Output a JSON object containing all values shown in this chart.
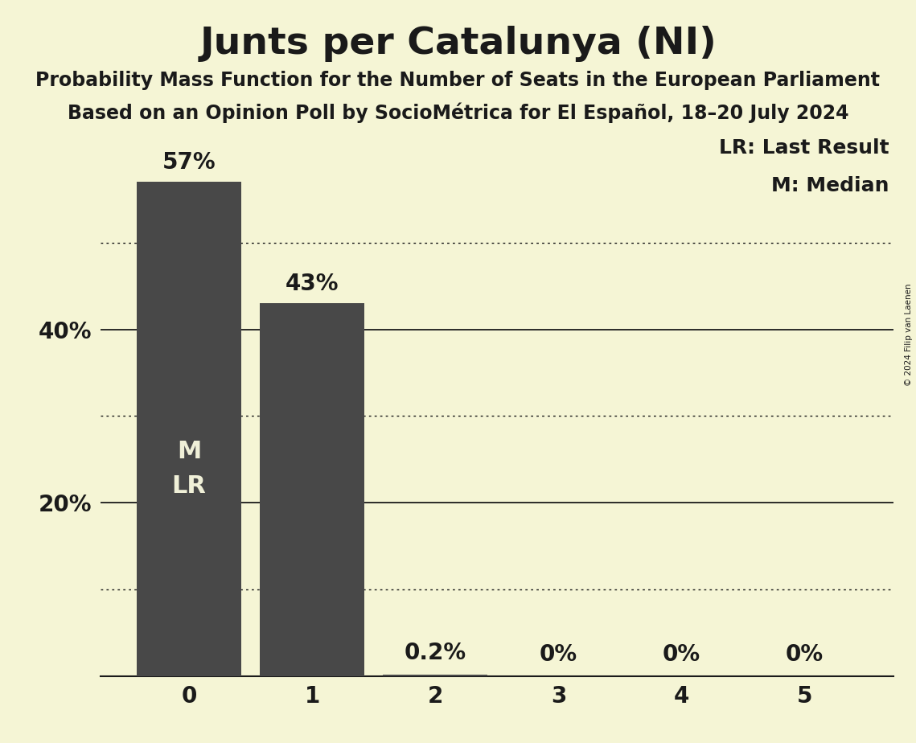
{
  "title": "Junts per Catalunya (NI)",
  "subtitle1": "Probability Mass Function for the Number of Seats in the European Parliament",
  "subtitle2": "Based on an Opinion Poll by SocioMétrica for El Español, 18–20 July 2024",
  "categories": [
    0,
    1,
    2,
    3,
    4,
    5
  ],
  "values": [
    0.57,
    0.43,
    0.002,
    0.0,
    0.0,
    0.0
  ],
  "bar_labels": [
    "57%",
    "43%",
    "0.2%",
    "0%",
    "0%",
    "0%"
  ],
  "bar_color": "#484848",
  "background_color": "#f5f5d5",
  "text_color": "#1a1a1a",
  "bar_text_color": "#f0f0d8",
  "bar_label_above_color": "#1a1a1a",
  "ylabel_ticks": [
    0.0,
    0.1,
    0.2,
    0.3,
    0.4,
    0.5
  ],
  "ylabel_labels": [
    "",
    "",
    "20%",
    "",
    "40%",
    ""
  ],
  "ylim": [
    0,
    0.63
  ],
  "legend_lr": "LR: Last Result",
  "legend_m": "M: Median",
  "copyright": "© 2024 Filip van Laenen",
  "grid_solid_values": [
    0.2,
    0.4
  ],
  "grid_dotted_values": [
    0.1,
    0.3,
    0.5
  ],
  "title_fontsize": 34,
  "subtitle_fontsize": 17,
  "tick_fontsize": 20,
  "bar_label_fontsize": 20,
  "inside_label_fontsize": 22,
  "legend_fontsize": 18
}
